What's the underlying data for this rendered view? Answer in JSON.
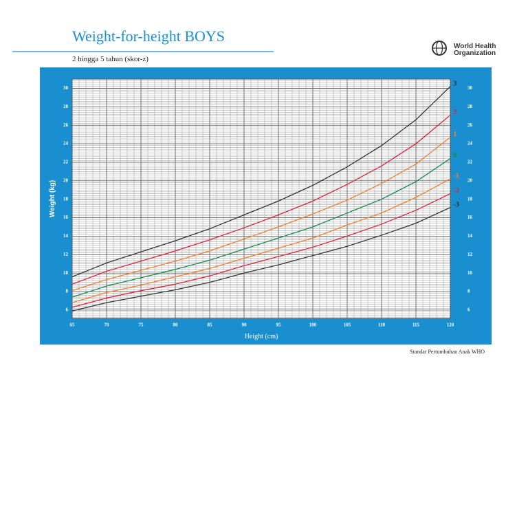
{
  "chart_data": {
    "type": "line",
    "title": "Weight-for-height BOYS",
    "subtitle": "2 hingga 5 tahun (skor-z)",
    "x_label": "Height (cm)",
    "y_label": "Weight (kg)",
    "source": "Standar Pertumbuhan Anak WHO",
    "logo_text": [
      "World Health",
      "Organization"
    ],
    "x": [
      65,
      70,
      75,
      80,
      85,
      90,
      95,
      100,
      105,
      110,
      115,
      120
    ],
    "series": [
      {
        "name": "3",
        "color": "#333333",
        "values": [
          9.6,
          11.1,
          12.3,
          13.5,
          14.8,
          16.3,
          17.8,
          19.5,
          21.5,
          23.8,
          26.6,
          30.2
        ]
      },
      {
        "name": "2",
        "color": "#d7263d",
        "values": [
          8.8,
          10.2,
          11.3,
          12.4,
          13.6,
          14.9,
          16.3,
          17.8,
          19.6,
          21.6,
          24.0,
          27.1
        ]
      },
      {
        "name": "1",
        "color": "#f07e2a",
        "values": [
          8.1,
          9.3,
          10.3,
          11.3,
          12.4,
          13.7,
          15.0,
          16.4,
          17.9,
          19.7,
          21.8,
          24.7
        ]
      },
      {
        "name": "0",
        "color": "#138a4a",
        "values": [
          7.4,
          8.6,
          9.5,
          10.4,
          11.4,
          12.6,
          13.8,
          15.0,
          16.5,
          18.0,
          19.9,
          22.4
        ]
      },
      {
        "name": "-1",
        "color": "#f07e2a",
        "values": [
          6.8,
          7.9,
          8.7,
          9.6,
          10.5,
          11.6,
          12.7,
          13.8,
          15.2,
          16.5,
          18.2,
          20.2
        ]
      },
      {
        "name": "-2",
        "color": "#d7263d",
        "values": [
          6.3,
          7.3,
          8.1,
          8.8,
          9.7,
          10.8,
          11.8,
          12.8,
          14.0,
          15.3,
          16.8,
          18.6
        ]
      },
      {
        "name": "-3",
        "color": "#333333",
        "values": [
          5.9,
          6.8,
          7.5,
          8.2,
          9.0,
          10.0,
          10.9,
          11.9,
          12.9,
          14.1,
          15.4,
          17.1
        ]
      }
    ],
    "xlim": [
      65,
      120
    ],
    "ylim": [
      5.1,
      31
    ],
    "xticks": [
      65,
      70,
      75,
      80,
      85,
      90,
      95,
      100,
      105,
      110,
      115,
      120
    ],
    "yticks": [
      6,
      8,
      10,
      12,
      14,
      16,
      18,
      20,
      22,
      24,
      26,
      28,
      30
    ],
    "grid": true
  }
}
